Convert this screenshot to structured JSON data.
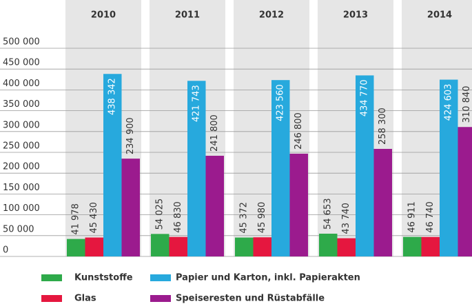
{
  "chart_data": {
    "type": "bar",
    "categories": [
      "2010",
      "2011",
      "2012",
      "2013",
      "2014"
    ],
    "series": [
      {
        "name": "Kunststoffe",
        "color": "#2eaa4a",
        "values": [
          41978,
          54025,
          45372,
          54653,
          46911
        ],
        "value_labels": [
          "41 978",
          "54 025",
          "45 372",
          "54 653",
          "46 911"
        ]
      },
      {
        "name": "Glas",
        "color": "#e5173f",
        "values": [
          45430,
          46830,
          45980,
          43740,
          46740
        ],
        "value_labels": [
          "45 430",
          "46 830",
          "45 980",
          "43 740",
          "46 740"
        ]
      },
      {
        "name": "Papier und Karton, inkl. Papierakten",
        "color": "#27a9dd",
        "values": [
          438342,
          421743,
          423560,
          434770,
          424603
        ],
        "value_labels": [
          "438 342",
          "421 743",
          "423 560",
          "434 770",
          "424 603"
        ]
      },
      {
        "name": "Speiseresten und Rüstabfälle",
        "color": "#9b1b8e",
        "values": [
          234900,
          241800,
          246800,
          258300,
          310840
        ],
        "value_labels": [
          "234 900",
          "241 800",
          "246 800",
          "258 300",
          "310 840"
        ]
      }
    ],
    "ylim": [
      0,
      500000
    ],
    "yticks": [
      0,
      {
        "value": 50000,
        "label": "50 000"
      },
      {
        "value": 100000,
        "label": "100 000"
      },
      {
        "value": 150000,
        "label": "150 000"
      },
      {
        "value": 200000,
        "label": "200 000"
      },
      {
        "value": 250000,
        "label": "250 000"
      },
      {
        "value": 300000,
        "label": "300 000"
      },
      {
        "value": 350000,
        "label": "350 000"
      },
      {
        "value": 400000,
        "label": "400 000"
      },
      {
        "value": 450000,
        "label": "450 000"
      },
      {
        "value": {
          "value": 500000,
          "label": "500 000"
        }
      }
    ],
    "grid": true
  }
}
